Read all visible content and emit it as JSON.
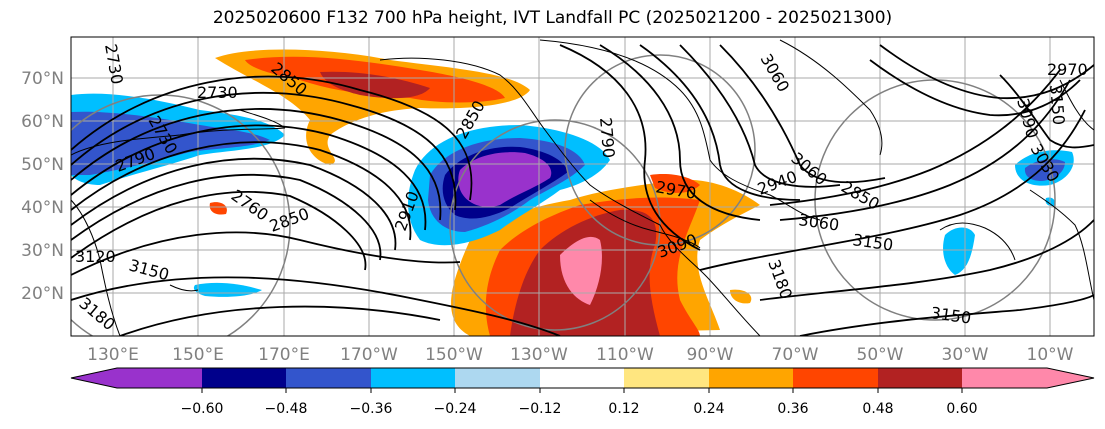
{
  "title": "2025020600 F132 700 hPa height, IVT Landfall PC (2025021200 - 2025021300)",
  "map": {
    "lat_labels": [
      "70°N",
      "60°N",
      "50°N",
      "40°N",
      "30°N",
      "20°N"
    ],
    "lon_labels": [
      "130°E",
      "150°E",
      "170°E",
      "170°W",
      "150°W",
      "130°W",
      "110°W",
      "90°W",
      "70°W",
      "50°W",
      "30°W",
      "10°W"
    ],
    "contour_labels": [
      "2730",
      "2730",
      "2730",
      "2790",
      "2760",
      "2850",
      "2910",
      "2850",
      "2850",
      "3060",
      "3090",
      "3120",
      "3150",
      "3180",
      "3150",
      "3180",
      "3150",
      "3030",
      "2970",
      "3090",
      "3150",
      "2790",
      "2850",
      "2940",
      "2970",
      "3060",
      "3060"
    ]
  },
  "colorbar": {
    "colors": [
      "#9932cc",
      "#00008b",
      "#3355cc",
      "#00bfff",
      "#add8f0",
      "#ffffff",
      "#ffe680",
      "#ffa500",
      "#ff4500",
      "#b22222",
      "#ff88aa"
    ],
    "ticks": [
      "−0.60",
      "−0.48",
      "−0.36",
      "−0.24",
      "−0.12",
      "0.12",
      "0.24",
      "0.36",
      "0.48",
      "0.60"
    ]
  },
  "colors": {
    "contour": "#000000",
    "grid": "#aaaaaa",
    "axis_label": "#808080"
  }
}
